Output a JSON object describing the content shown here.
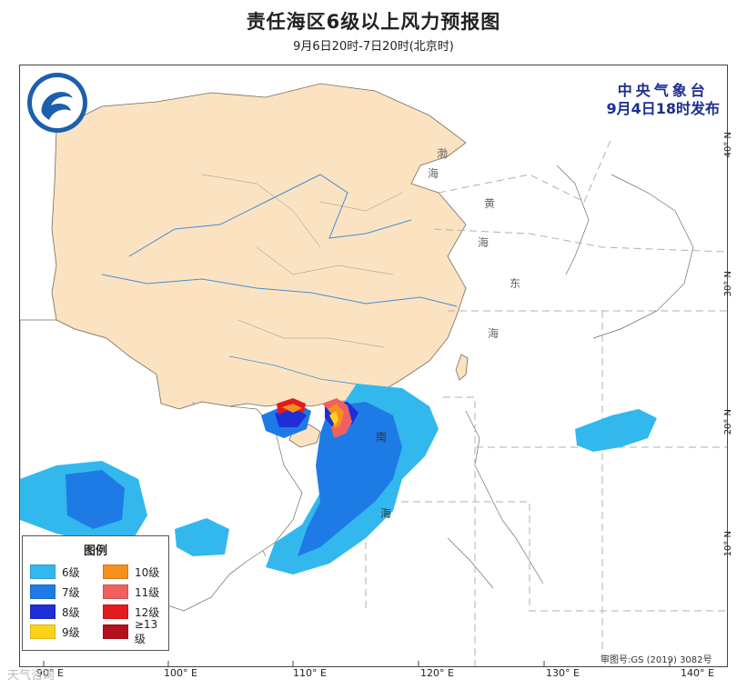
{
  "title": "责任海区6级以上风力预报图",
  "subtitle": "9月6日20时-7日20时(北京时)",
  "issuer": {
    "name": "中央气象台",
    "time": "9月4日18时发布"
  },
  "legend": {
    "title": "图例",
    "items": [
      {
        "label": "6级",
        "color": "#33b8ee"
      },
      {
        "label": "10级",
        "color": "#f5901f"
      },
      {
        "label": "7级",
        "color": "#1e7be6"
      },
      {
        "label": "11级",
        "color": "#f06060"
      },
      {
        "label": "8级",
        "color": "#1f2fd6"
      },
      {
        "label": "12级",
        "color": "#e41b1b"
      },
      {
        "label": "9级",
        "color": "#ffd21a"
      },
      {
        "label": "≥13级",
        "color": "#b4111c"
      }
    ]
  },
  "sea_labels": {
    "bohai": [
      "渤",
      "海"
    ],
    "yellow_sea": [
      "黄",
      "海"
    ],
    "east_sea": [
      "东",
      "海"
    ],
    "south_sea": [
      "南",
      "海"
    ]
  },
  "lon_labels": [
    "90° E",
    "100° E",
    "110° E",
    "120° E",
    "130° E",
    "140° E"
  ],
  "lat_labels": [
    "40° N",
    "30° N",
    "20° N",
    "10° N"
  ],
  "review_number": "审图号:GS (2019) 3082号",
  "watermark": "天气咨询",
  "colors": {
    "land_china": "#fbe3c2",
    "river": "#3f8fd6",
    "border": "#7a6a5a"
  }
}
